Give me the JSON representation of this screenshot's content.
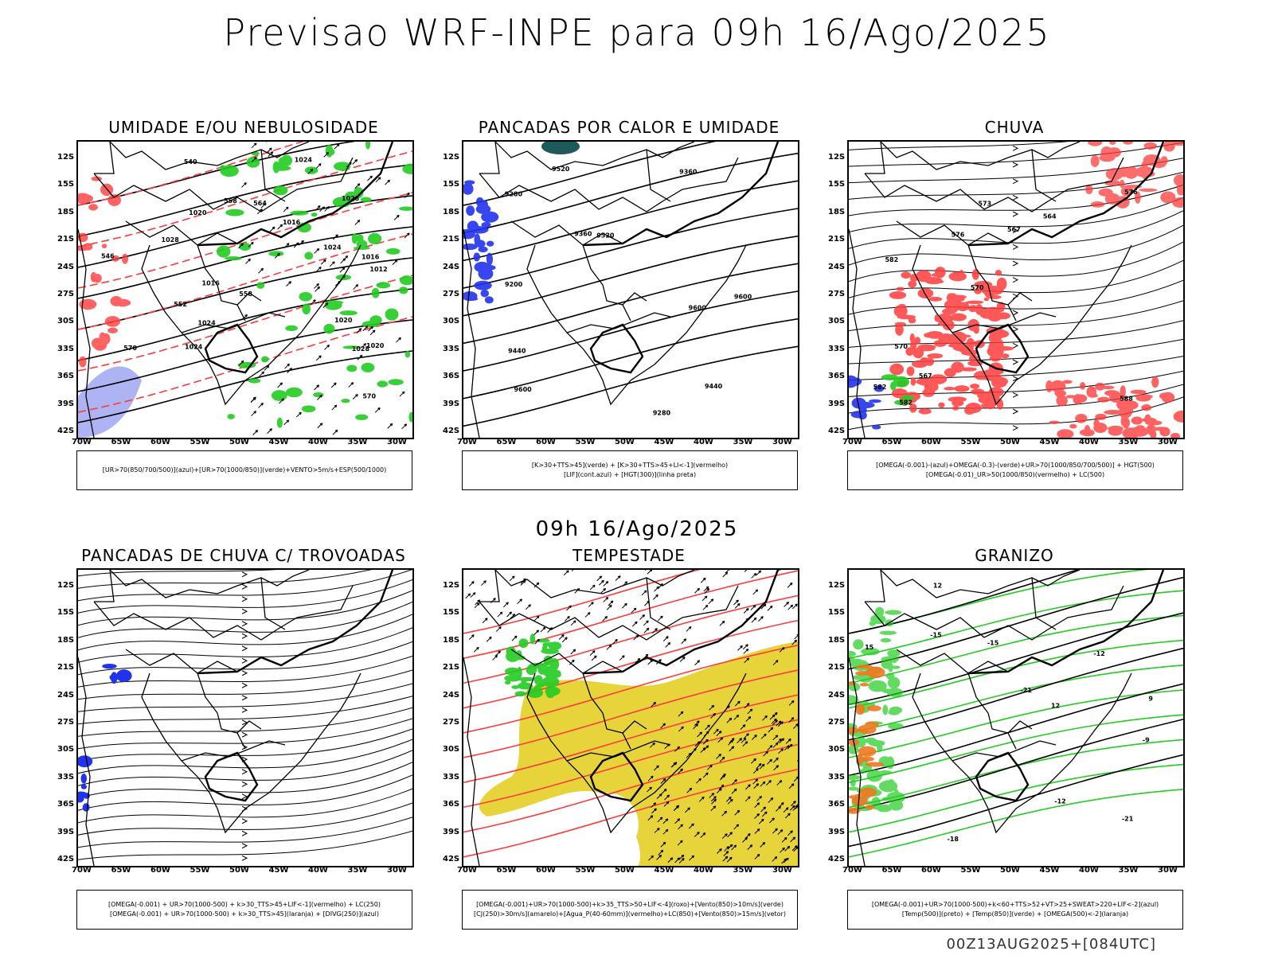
{
  "page": {
    "title": "Previsao WRF-INPE  para 09h 16/Ago/2025",
    "mid_title": "09h 16/Ago/2025",
    "run_stamp": "00Z13AUG2025+[084UTC]"
  },
  "axes": {
    "lat_labels": [
      "12S",
      "15S",
      "18S",
      "21S",
      "24S",
      "27S",
      "30S",
      "33S",
      "36S",
      "39S",
      "42S"
    ],
    "lon_labels": [
      "70W",
      "65W",
      "60W",
      "55W",
      "50W",
      "45W",
      "40W",
      "35W",
      "30W"
    ]
  },
  "colors": {
    "red": "#ff3b3b",
    "green": "#22cc22",
    "blue": "#2233ee",
    "lightblue": "#9aa0f0",
    "yellow": "#e6d43a",
    "teal": "#1e5a5a",
    "orange": "#f07820",
    "black": "#000000"
  },
  "panels": [
    {
      "id": "umidade",
      "title": "UMIDADE E/OU NEBULOSIDADE",
      "legend": [
        "[UR>70(850/700/500)](azul)+[UR>70(1000/850)](verde)+VENTO>5m/s+ESP(500/1000)"
      ],
      "contour_labels": [
        "1020",
        "1016",
        "1016",
        "1012",
        "1016",
        "1020",
        "1024",
        "1024",
        "1028",
        "1028",
        "1028",
        "1020",
        "1024",
        "1024",
        "570",
        "558",
        "552",
        "546",
        "540",
        "558",
        "570",
        "564"
      ]
    },
    {
      "id": "pancadas_calor",
      "title": "PANCADAS POR CALOR E UMIDADE",
      "legend": [
        "[K>30+TTS>45](verde) + [K>30+TTS>45+LI<-1](vermelho)",
        "[LIF](cont.azul) + [HGT(300)](linha preta)"
      ],
      "contour_labels": [
        "9600",
        "9600",
        "9600",
        "9520",
        "9520",
        "9440",
        "9440",
        "9360",
        "9360",
        "9280",
        "9280",
        "9200"
      ]
    },
    {
      "id": "chuva",
      "title": "CHUVA",
      "legend": [
        "[OMEGA(-0.001)-(azul)+OMEGA(-0.3)-(verde)+UR>70(1000/850/700/500)] + HGT(500)",
        "[OMEGA(-0.01)_UR>50(1000/850)(vermelho) + LC(500)"
      ],
      "contour_labels": [
        "588",
        "582",
        "576",
        "570",
        "564",
        "582",
        "573",
        "567",
        "570",
        "576",
        "582",
        "567"
      ]
    },
    {
      "id": "pancadas_trovoadas",
      "title": "PANCADAS DE CHUVA C/ TROVOADAS",
      "legend": [
        "[OMEGA(-0.001) + UR>70(1000-500) + k>30_TTS>45+LIF<-1](vermelho) + LC(250)",
        "[OMEGA(-0.001) + UR>70(1000-500) + k>30_TTS>45](laranja) + [DIVG(250)](azul)"
      ],
      "contour_labels": []
    },
    {
      "id": "tempestade",
      "title": "TEMPESTADE",
      "legend": [
        "[OMEGA(-0.001)+UR>70(1000-500)+k>35_TTS>50+LIF<-4](roxo)+[Vento(850)>10m/s](verde)",
        "[CJ(250)>30m/s](amarelo)+[Agua_P(40-60mm)](vermelho)+LC(850)+[Vento(850)>15m/s](vetor)"
      ],
      "contour_labels": []
    },
    {
      "id": "granizo",
      "title": "GRANIZO",
      "legend": [
        "[OMEGA(-0.001)+UR>70(1000-500)+k<60+TTS>52+VT>25+SWEAT>220+LIF<-2](azul)",
        "[Temp(500)](preto) + [Temp(850)](verde) + [OMEGA(500)<-2](laranja)"
      ],
      "contour_labels": [
        "-9",
        "-12",
        "-12",
        "-15",
        "-15",
        "-18",
        "-21",
        "-21",
        "9",
        "12",
        "15",
        "12"
      ]
    }
  ]
}
